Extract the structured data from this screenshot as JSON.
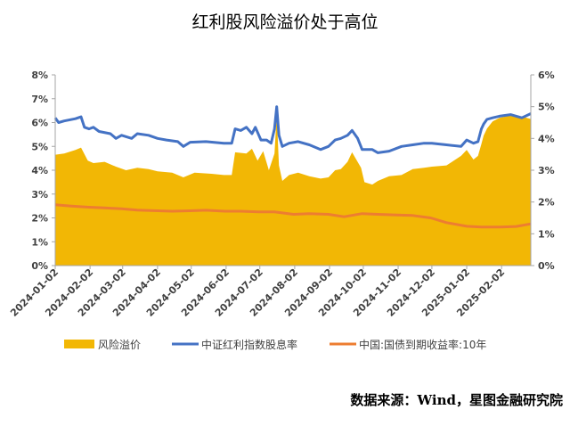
{
  "chart_data": {
    "type": "area",
    "title": "红利股风险溢价处于高位",
    "source": "数据来源：Wind，星图金融研究院",
    "y_left": {
      "ticks": [
        "0%",
        "1%",
        "2%",
        "3%",
        "4%",
        "5%",
        "6%",
        "7%",
        "8%"
      ],
      "lim": [
        0,
        8
      ]
    },
    "y_right": {
      "ticks": [
        "0%",
        "1%",
        "2%",
        "3%",
        "4%",
        "5%",
        "6%"
      ],
      "lim": [
        0,
        6
      ]
    },
    "x": {
      "ticks": [
        "2024-01-02",
        "2024-02-02",
        "2024-03-02",
        "2024-04-02",
        "2024-05-02",
        "2024-06-02",
        "2024-07-02",
        "2024-08-02",
        "2024-09-02",
        "2024-10-02",
        "2024-11-02",
        "2024-12-02",
        "2025-01-02",
        "2025-02-02"
      ],
      "range": [
        "2024-01-02",
        "2025-02-28"
      ]
    },
    "grid": false,
    "legend_position": "bottom",
    "series": [
      {
        "name": "风险溢价",
        "axis": "left",
        "style": "area",
        "color": "#F2B705",
        "points": [
          [
            "2024-01-02",
            4.65
          ],
          [
            "2024-01-10",
            4.7
          ],
          [
            "2024-01-20",
            4.85
          ],
          [
            "2024-01-25",
            4.95
          ],
          [
            "2024-01-31",
            4.4
          ],
          [
            "2024-02-05",
            4.3
          ],
          [
            "2024-02-15",
            4.35
          ],
          [
            "2024-02-25",
            4.15
          ],
          [
            "2024-03-05",
            4.0
          ],
          [
            "2024-03-15",
            4.1
          ],
          [
            "2024-03-25",
            4.05
          ],
          [
            "2024-04-02",
            3.95
          ],
          [
            "2024-04-15",
            3.9
          ],
          [
            "2024-04-25",
            3.7
          ],
          [
            "2024-05-05",
            3.9
          ],
          [
            "2024-05-20",
            3.85
          ],
          [
            "2024-05-31",
            3.8
          ],
          [
            "2024-06-07",
            3.8
          ],
          [
            "2024-06-10",
            4.75
          ],
          [
            "2024-06-20",
            4.7
          ],
          [
            "2024-06-25",
            4.9
          ],
          [
            "2024-06-30",
            4.4
          ],
          [
            "2024-07-05",
            4.8
          ],
          [
            "2024-07-10",
            4.0
          ],
          [
            "2024-07-15",
            4.7
          ],
          [
            "2024-07-17",
            6.3
          ],
          [
            "2024-07-19",
            4.2
          ],
          [
            "2024-07-22",
            3.55
          ],
          [
            "2024-07-28",
            3.8
          ],
          [
            "2024-08-05",
            3.9
          ],
          [
            "2024-08-15",
            3.75
          ],
          [
            "2024-08-25",
            3.65
          ],
          [
            "2024-09-01",
            3.7
          ],
          [
            "2024-09-07",
            4.0
          ],
          [
            "2024-09-12",
            4.05
          ],
          [
            "2024-09-18",
            4.35
          ],
          [
            "2024-09-22",
            4.75
          ],
          [
            "2024-09-30",
            4.1
          ],
          [
            "2024-10-03",
            3.5
          ],
          [
            "2024-10-10",
            3.4
          ],
          [
            "2024-10-15",
            3.55
          ],
          [
            "2024-10-25",
            3.75
          ],
          [
            "2024-11-05",
            3.8
          ],
          [
            "2024-11-15",
            4.05
          ],
          [
            "2024-11-25",
            4.1
          ],
          [
            "2024-12-02",
            4.15
          ],
          [
            "2024-12-15",
            4.2
          ],
          [
            "2024-12-28",
            4.6
          ],
          [
            "2025-01-02",
            4.85
          ],
          [
            "2025-01-08",
            4.45
          ],
          [
            "2025-01-12",
            4.6
          ],
          [
            "2025-01-15",
            5.1
          ],
          [
            "2025-01-17",
            5.45
          ],
          [
            "2025-01-20",
            5.75
          ],
          [
            "2025-01-25",
            6.05
          ],
          [
            "2025-01-31",
            6.2
          ],
          [
            "2025-02-10",
            6.3
          ],
          [
            "2025-02-20",
            6.25
          ],
          [
            "2025-02-28",
            6.15
          ]
        ]
      },
      {
        "name": "中证红利指数股息率",
        "axis": "right",
        "style": "line",
        "color": "#4472C4",
        "points": [
          [
            "2024-01-02",
            4.65
          ],
          [
            "2024-01-05",
            4.5
          ],
          [
            "2024-01-10",
            4.55
          ],
          [
            "2024-01-20",
            4.62
          ],
          [
            "2024-01-25",
            4.68
          ],
          [
            "2024-01-28",
            4.35
          ],
          [
            "2024-02-01",
            4.3
          ],
          [
            "2024-02-05",
            4.35
          ],
          [
            "2024-02-10",
            4.22
          ],
          [
            "2024-02-20",
            4.15
          ],
          [
            "2024-02-25",
            4.0
          ],
          [
            "2024-03-01",
            4.1
          ],
          [
            "2024-03-10",
            4.0
          ],
          [
            "2024-03-15",
            4.15
          ],
          [
            "2024-03-25",
            4.1
          ],
          [
            "2024-04-02",
            4.0
          ],
          [
            "2024-04-10",
            3.95
          ],
          [
            "2024-04-20",
            3.9
          ],
          [
            "2024-04-25",
            3.75
          ],
          [
            "2024-05-01",
            3.88
          ],
          [
            "2024-05-15",
            3.9
          ],
          [
            "2024-05-31",
            3.85
          ],
          [
            "2024-06-07",
            3.85
          ],
          [
            "2024-06-10",
            4.3
          ],
          [
            "2024-06-15",
            4.25
          ],
          [
            "2024-06-20",
            4.35
          ],
          [
            "2024-06-25",
            4.15
          ],
          [
            "2024-06-28",
            4.35
          ],
          [
            "2024-07-03",
            3.95
          ],
          [
            "2024-07-08",
            3.95
          ],
          [
            "2024-07-12",
            3.85
          ],
          [
            "2024-07-15",
            4.3
          ],
          [
            "2024-07-17",
            5.0
          ],
          [
            "2024-07-19",
            4.1
          ],
          [
            "2024-07-22",
            3.75
          ],
          [
            "2024-07-28",
            3.85
          ],
          [
            "2024-08-05",
            3.9
          ],
          [
            "2024-08-15",
            3.8
          ],
          [
            "2024-08-25",
            3.65
          ],
          [
            "2024-09-01",
            3.75
          ],
          [
            "2024-09-07",
            3.95
          ],
          [
            "2024-09-12",
            4.0
          ],
          [
            "2024-09-18",
            4.1
          ],
          [
            "2024-09-22",
            4.25
          ],
          [
            "2024-09-27",
            4.0
          ],
          [
            "2024-10-01",
            3.65
          ],
          [
            "2024-10-10",
            3.65
          ],
          [
            "2024-10-15",
            3.55
          ],
          [
            "2024-10-25",
            3.6
          ],
          [
            "2024-11-05",
            3.75
          ],
          [
            "2024-11-15",
            3.8
          ],
          [
            "2024-11-25",
            3.85
          ],
          [
            "2024-12-02",
            3.85
          ],
          [
            "2024-12-15",
            3.8
          ],
          [
            "2024-12-28",
            3.75
          ],
          [
            "2025-01-02",
            3.95
          ],
          [
            "2025-01-08",
            3.85
          ],
          [
            "2025-01-12",
            3.9
          ],
          [
            "2025-01-15",
            4.3
          ],
          [
            "2025-01-17",
            4.45
          ],
          [
            "2025-01-20",
            4.6
          ],
          [
            "2025-01-25",
            4.65
          ],
          [
            "2025-01-31",
            4.7
          ],
          [
            "2025-02-10",
            4.75
          ],
          [
            "2025-02-20",
            4.65
          ],
          [
            "2025-02-28",
            4.78
          ]
        ]
      },
      {
        "name": "中国:国债到期收益率:10年",
        "axis": "left",
        "style": "line",
        "color": "#ED7D31",
        "points": [
          [
            "2024-01-02",
            2.55
          ],
          [
            "2024-01-15",
            2.5
          ],
          [
            "2024-02-01",
            2.45
          ],
          [
            "2024-02-15",
            2.42
          ],
          [
            "2024-03-01",
            2.38
          ],
          [
            "2024-03-15",
            2.33
          ],
          [
            "2024-04-02",
            2.3
          ],
          [
            "2024-04-15",
            2.28
          ],
          [
            "2024-05-01",
            2.3
          ],
          [
            "2024-05-15",
            2.32
          ],
          [
            "2024-06-01",
            2.28
          ],
          [
            "2024-06-15",
            2.28
          ],
          [
            "2024-07-01",
            2.25
          ],
          [
            "2024-07-15",
            2.25
          ],
          [
            "2024-08-01",
            2.15
          ],
          [
            "2024-08-15",
            2.18
          ],
          [
            "2024-09-01",
            2.15
          ],
          [
            "2024-09-15",
            2.05
          ],
          [
            "2024-10-01",
            2.18
          ],
          [
            "2024-10-15",
            2.15
          ],
          [
            "2024-11-01",
            2.12
          ],
          [
            "2024-11-15",
            2.1
          ],
          [
            "2024-12-01",
            2.0
          ],
          [
            "2024-12-15",
            1.8
          ],
          [
            "2025-01-02",
            1.65
          ],
          [
            "2025-01-15",
            1.62
          ],
          [
            "2025-02-01",
            1.62
          ],
          [
            "2025-02-15",
            1.64
          ],
          [
            "2025-02-28",
            1.75
          ]
        ]
      }
    ]
  }
}
